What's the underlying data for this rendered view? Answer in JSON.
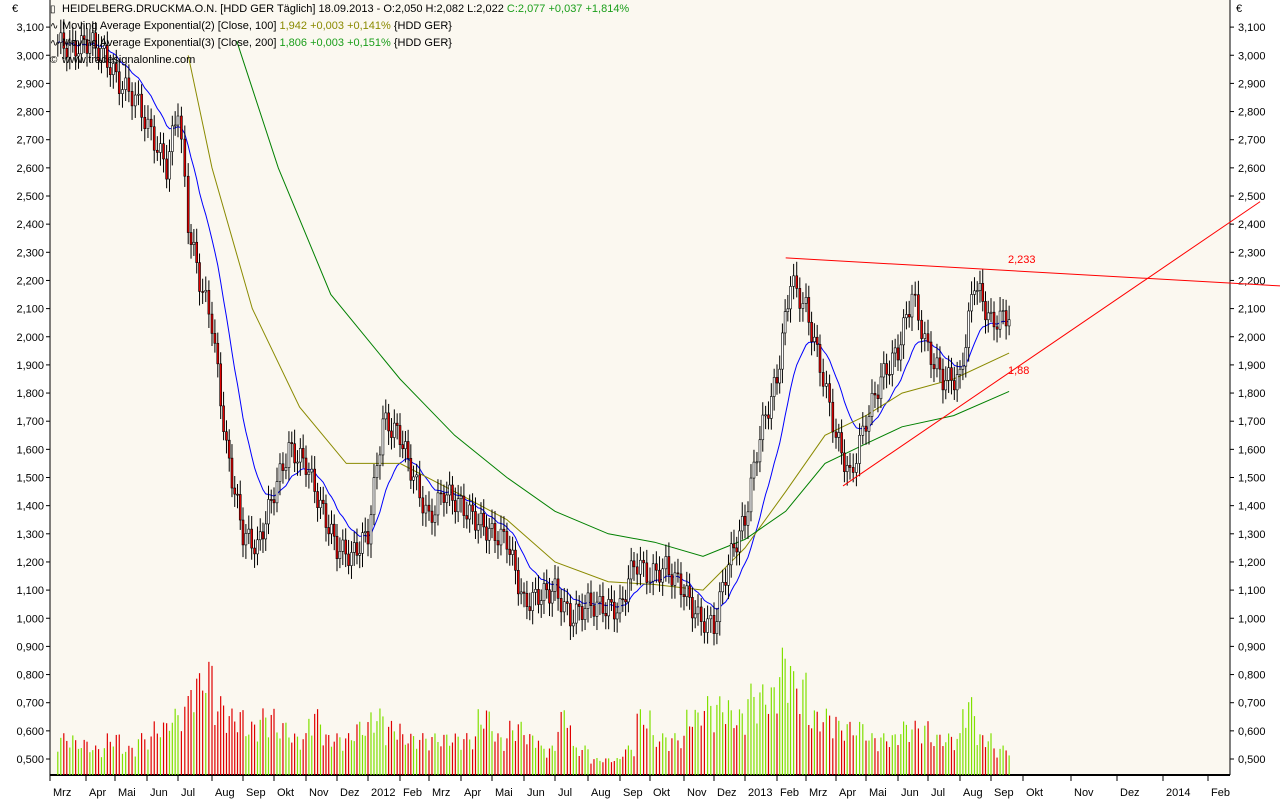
{
  "legend": {
    "main": {
      "name": "HEIDELBERG.DRUCKMA.O.N. [HDD GER  Täglich] 18.09.2013 - ",
      "ohl": "O:2,050 H:2,082 L:2,022 ",
      "close": "C:2,077 +0,037 +1,814%"
    },
    "ema1": {
      "name": "Moving Average Exponential(2) [Close, 100] ",
      "values": "1,942 +0,003 +0,141%",
      "tag": " {HDD GER}"
    },
    "ema2": {
      "name": "Moving Average Exponential(3) [Close, 200] ",
      "values": "1,806 +0,003 +0,151%",
      "tag": " {HDD GER}"
    },
    "copyright": "www.tradesignalonline.com"
  },
  "currency_symbol": "€",
  "colors": {
    "background": "#fbf8f0",
    "up": "#000000",
    "down": "#e00000",
    "ema_short": "#0000ff",
    "ema100": "#8a8a00",
    "ema200": "#008000",
    "trendline": "#ff0000",
    "volume_up": "#80e000",
    "volume_down": "#e00000"
  },
  "chart_data": {
    "type": "candlestick",
    "yticks": [
      "3,100",
      "3,000",
      "2,900",
      "2,800",
      "2,700",
      "2,600",
      "2,500",
      "2,400",
      "2,300",
      "2,200",
      "2,100",
      "2,000",
      "1,900",
      "1,800",
      "1,700",
      "1,600",
      "1,500",
      "1,400",
      "1,300",
      "1,200",
      "1,100",
      "1,000",
      "0,900",
      "0,800",
      "0,700",
      "0,600",
      "0,500"
    ],
    "ylim": [
      0.45,
      3.15
    ],
    "xticks": [
      "Mrz",
      "Apr",
      "Mai",
      "Jun",
      "Jul",
      "Aug",
      "Sep",
      "Okt",
      "Nov",
      "Dez",
      "2012",
      "Feb",
      "Mrz",
      "Apr",
      "Mai",
      "Jun",
      "Jul",
      "Aug",
      "Sep",
      "Okt",
      "Nov",
      "Dez",
      "2013",
      "Feb",
      "Mrz",
      "Apr",
      "Mai",
      "Jun",
      "Jul",
      "Aug",
      "Sep",
      "Okt",
      "Nov",
      "Dez",
      "2014",
      "Feb"
    ],
    "close": [
      [
        "2011-03-05",
        3.05
      ],
      [
        "2011-03-20",
        3.02
      ],
      [
        "2011-04-05",
        3.05
      ],
      [
        "2011-04-20",
        3.0
      ],
      [
        "2011-05-05",
        2.9
      ],
      [
        "2011-05-20",
        2.85
      ],
      [
        "2011-06-05",
        2.72
      ],
      [
        "2011-06-20",
        2.6
      ],
      [
        "2011-07-01",
        2.82
      ],
      [
        "2011-07-10",
        2.4
      ],
      [
        "2011-07-20",
        2.2
      ],
      [
        "2011-08-01",
        2.05
      ],
      [
        "2011-08-15",
        1.6
      ],
      [
        "2011-09-01",
        1.3
      ],
      [
        "2011-09-15",
        1.25
      ],
      [
        "2011-10-01",
        1.45
      ],
      [
        "2011-10-15",
        1.6
      ],
      [
        "2011-11-01",
        1.55
      ],
      [
        "2011-11-15",
        1.4
      ],
      [
        "2011-12-01",
        1.25
      ],
      [
        "2011-12-15",
        1.22
      ],
      [
        "2012-01-01",
        1.3
      ],
      [
        "2012-01-15",
        1.7
      ],
      [
        "2012-02-01",
        1.65
      ],
      [
        "2012-02-15",
        1.5
      ],
      [
        "2012-03-01",
        1.35
      ],
      [
        "2012-03-15",
        1.45
      ],
      [
        "2012-04-01",
        1.4
      ],
      [
        "2012-04-15",
        1.35
      ],
      [
        "2012-05-01",
        1.3
      ],
      [
        "2012-05-15",
        1.28
      ],
      [
        "2012-06-01",
        1.05
      ],
      [
        "2012-06-15",
        1.08
      ],
      [
        "2012-07-01",
        1.1
      ],
      [
        "2012-07-15",
        1.0
      ],
      [
        "2012-08-01",
        1.05
      ],
      [
        "2012-08-15",
        1.04
      ],
      [
        "2012-09-01",
        1.03
      ],
      [
        "2012-09-15",
        1.2
      ],
      [
        "2012-10-01",
        1.15
      ],
      [
        "2012-10-15",
        1.18
      ],
      [
        "2012-11-01",
        1.1
      ],
      [
        "2012-11-15",
        1.0
      ],
      [
        "2012-12-01",
        0.97
      ],
      [
        "2012-12-15",
        1.2
      ],
      [
        "2013-01-01",
        1.35
      ],
      [
        "2013-01-15",
        1.65
      ],
      [
        "2013-02-01",
        1.85
      ],
      [
        "2013-02-15",
        2.2
      ],
      [
        "2013-03-01",
        2.1
      ],
      [
        "2013-03-15",
        1.9
      ],
      [
        "2013-04-01",
        1.65
      ],
      [
        "2013-04-15",
        1.5
      ],
      [
        "2013-05-01",
        1.7
      ],
      [
        "2013-05-15",
        1.85
      ],
      [
        "2013-06-01",
        1.95
      ],
      [
        "2013-06-15",
        2.15
      ],
      [
        "2013-07-01",
        1.95
      ],
      [
        "2013-07-15",
        1.85
      ],
      [
        "2013-08-01",
        1.85
      ],
      [
        "2013-08-15",
        2.2
      ],
      [
        "2013-09-01",
        2.05
      ],
      [
        "2013-09-18",
        2.077
      ]
    ],
    "volume_relative": [
      0.6,
      0.3,
      0.25,
      0.2,
      0.3,
      0.2,
      0.3,
      0.4,
      0.5,
      0.6,
      0.8,
      0.9,
      0.6,
      0.5,
      0.4,
      0.5,
      0.4,
      0.3,
      0.5,
      0.3,
      0.3,
      0.4,
      0.5,
      0.4,
      0.3,
      0.3,
      0.3,
      0.3,
      0.3,
      0.5,
      0.3,
      0.4,
      0.3,
      0.2,
      0.5,
      0.2,
      0.1,
      0.1,
      0.2,
      0.5,
      0.3,
      0.3,
      0.5,
      0.6,
      0.6,
      0.5,
      0.7,
      0.7,
      1.0,
      0.8,
      0.5,
      0.5,
      0.4,
      0.4,
      0.3,
      0.3,
      0.4,
      0.4,
      0.3,
      0.3,
      0.6,
      0.3,
      0.2
    ],
    "ema100": [
      [
        "2011-07-10",
        3.0
      ],
      [
        "2011-08-01",
        2.6
      ],
      [
        "2011-09-10",
        2.1
      ],
      [
        "2011-10-25",
        1.75
      ],
      [
        "2011-12-10",
        1.55
      ],
      [
        "2012-02-01",
        1.55
      ],
      [
        "2012-03-25",
        1.45
      ],
      [
        "2012-05-15",
        1.35
      ],
      [
        "2012-07-01",
        1.2
      ],
      [
        "2012-08-20",
        1.13
      ],
      [
        "2012-10-05",
        1.12
      ],
      [
        "2012-11-20",
        1.1
      ],
      [
        "2013-01-01",
        1.25
      ],
      [
        "2013-02-10",
        1.45
      ],
      [
        "2013-03-20",
        1.65
      ],
      [
        "2013-05-01",
        1.72
      ],
      [
        "2013-06-05",
        1.8
      ],
      [
        "2013-07-25",
        1.85
      ],
      [
        "2013-09-18",
        1.942
      ]
    ],
    "ema200": [
      [
        "2011-08-25",
        3.05
      ],
      [
        "2011-10-05",
        2.6
      ],
      [
        "2011-11-25",
        2.15
      ],
      [
        "2012-02-01",
        1.85
      ],
      [
        "2012-03-25",
        1.65
      ],
      [
        "2012-05-15",
        1.5
      ],
      [
        "2012-07-01",
        1.38
      ],
      [
        "2012-08-20",
        1.3
      ],
      [
        "2012-10-05",
        1.27
      ],
      [
        "2012-11-20",
        1.22
      ],
      [
        "2013-01-01",
        1.28
      ],
      [
        "2013-02-10",
        1.38
      ],
      [
        "2013-03-20",
        1.55
      ],
      [
        "2013-05-01",
        1.62
      ],
      [
        "2013-06-05",
        1.68
      ],
      [
        "2013-07-25",
        1.72
      ],
      [
        "2013-09-18",
        1.806
      ]
    ],
    "trendlines": [
      {
        "label": "2,233",
        "from": [
          "2013-02-10",
          2.28
        ],
        "to": [
          "2014-03-20",
          2.18
        ]
      },
      {
        "label": "1,88",
        "from": [
          "2013-04-08",
          1.47
        ],
        "to": [
          "2014-03-05",
          2.48
        ]
      }
    ]
  }
}
